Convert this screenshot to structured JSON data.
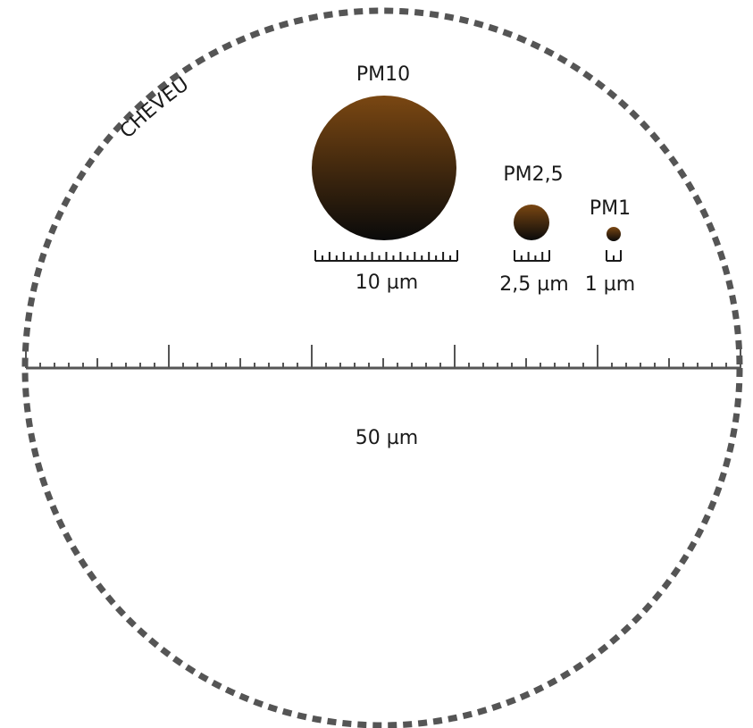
{
  "hair": {
    "label": "CHEVEU",
    "scale_label": "50 µm",
    "diameter_um": 50
  },
  "particles": [
    {
      "key": "pm10",
      "name": "PM10",
      "size_label": "10 µm",
      "diameter_um": 10
    },
    {
      "key": "pm25",
      "name": "PM2,5",
      "size_label": "2,5 µm",
      "diameter_um": 2.5
    },
    {
      "key": "pm1",
      "name": "PM1",
      "size_label": "1 µm",
      "diameter_um": 1
    }
  ],
  "colors": {
    "outline": "#555555",
    "scale": "#555555",
    "particle_top": "#7a4712",
    "particle_bottom": "#0a0a0a",
    "text": "#1a1a1a"
  }
}
